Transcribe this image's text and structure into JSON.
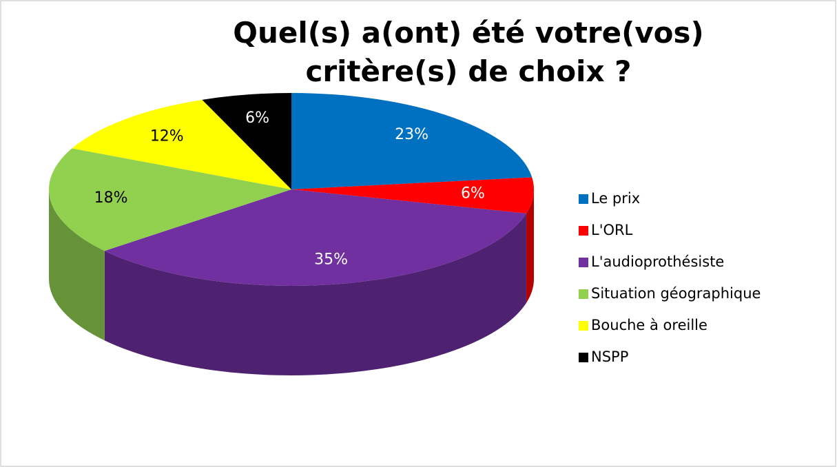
{
  "chart_data": {
    "type": "pie",
    "title": "Quel(s) a(ont) été votre(vos) critère(s) de choix ?",
    "categories": [
      "Le prix",
      "L'ORL",
      "L'audioprothésiste",
      "Situation géographique",
      "Bouche à oreille",
      "NSPP"
    ],
    "values": [
      23,
      6,
      35,
      18,
      12,
      6
    ],
    "value_labels": [
      "23%",
      "6%",
      "35%",
      "18%",
      "12%",
      "6%"
    ],
    "colors": [
      "#0070c0",
      "#ff0000",
      "#7030a0",
      "#92d050",
      "#ffff00",
      "#000000"
    ],
    "legend": "right"
  }
}
